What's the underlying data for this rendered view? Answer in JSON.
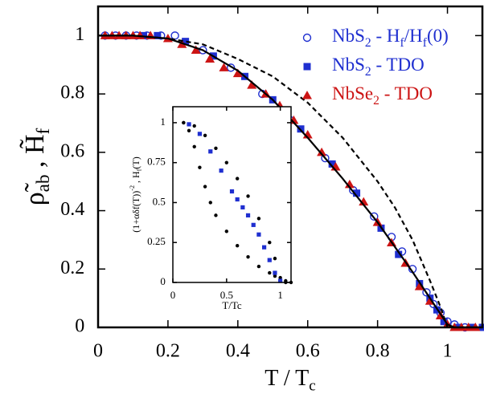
{
  "chart_data": [
    {
      "type": "scatter",
      "xlabel": [
        {
          "text": "T / T"
        },
        {
          "text": "c",
          "script": "sub"
        }
      ],
      "ylabel": [
        {
          "text": "ρ̃"
        },
        {
          "text": "ab",
          "script": "sub"
        },
        {
          "text": " ,  H̃"
        },
        {
          "text": "f",
          "script": "sub"
        }
      ],
      "xlim": [
        0,
        1.1
      ],
      "ylim": [
        0,
        1.1
      ],
      "xticks": [
        0,
        0.2,
        0.4,
        0.6,
        0.8,
        1
      ],
      "yticks": [
        0,
        0.2,
        0.4,
        0.6,
        0.8,
        1
      ],
      "legend": "upper right",
      "series": [
        {
          "name": [
            {
              "text": "NbS"
            },
            {
              "text": "2",
              "script": "sub"
            },
            {
              "text": " - H"
            },
            {
              "text": "f",
              "script": "sub"
            },
            {
              "text": "/H"
            },
            {
              "text": "f",
              "script": "sub"
            },
            {
              "text": "(0)"
            }
          ],
          "color": "#1f2fd0",
          "marker": "circle-open",
          "x": [
            0.02,
            0.05,
            0.08,
            0.11,
            0.14,
            0.18,
            0.22,
            0.3,
            0.38,
            0.47,
            0.55,
            0.65,
            0.73,
            0.79,
            0.84,
            0.87,
            0.9,
            0.94,
            0.96,
            0.98,
            1.0,
            1.02,
            1.05
          ],
          "values": [
            1,
            1,
            1,
            1,
            1,
            1,
            1,
            0.95,
            0.89,
            0.8,
            0.71,
            0.58,
            0.47,
            0.38,
            0.31,
            0.26,
            0.2,
            0.12,
            0.08,
            0.05,
            0.02,
            0.01,
            0
          ]
        },
        {
          "name": [
            {
              "text": "NbS"
            },
            {
              "text": "2",
              "script": "sub"
            },
            {
              "text": " - TDO"
            }
          ],
          "color": "#1f2fd0",
          "marker": "square",
          "x": [
            0.13,
            0.17,
            0.25,
            0.33,
            0.42,
            0.5,
            0.58,
            0.67,
            0.74,
            0.81,
            0.86,
            0.92,
            0.95,
            0.97,
            0.99,
            1.03,
            1.07,
            1.1
          ],
          "values": [
            1,
            1,
            0.98,
            0.93,
            0.86,
            0.78,
            0.68,
            0.56,
            0.46,
            0.34,
            0.25,
            0.15,
            0.1,
            0.06,
            0.02,
            0,
            0,
            0
          ]
        },
        {
          "name": [
            {
              "text": "NbSe"
            },
            {
              "text": "2",
              "script": "sub"
            },
            {
              "text": " - TDO"
            }
          ],
          "color": "#cc1414",
          "marker": "triangle",
          "x": [
            0.02,
            0.04,
            0.06,
            0.08,
            0.1,
            0.12,
            0.15,
            0.2,
            0.24,
            0.28,
            0.32,
            0.36,
            0.4,
            0.44,
            0.48,
            0.52,
            0.56,
            0.6,
            0.64,
            0.68,
            0.72,
            0.76,
            0.8,
            0.84,
            0.88,
            0.92,
            0.95,
            0.98,
            1.0,
            1.02,
            1.04,
            1.06,
            1.08
          ],
          "values": [
            1,
            1,
            1,
            1,
            1,
            1,
            1,
            0.99,
            0.97,
            0.95,
            0.92,
            0.89,
            0.87,
            0.83,
            0.8,
            0.76,
            0.71,
            0.66,
            0.6,
            0.55,
            0.49,
            0.43,
            0.36,
            0.29,
            0.22,
            0.14,
            0.09,
            0.04,
            0.01,
            0,
            0,
            0,
            0
          ]
        },
        {
          "color": "#000000",
          "marker": "line",
          "x": [
            0,
            0.1,
            0.2,
            0.3,
            0.4,
            0.5,
            0.6,
            0.7,
            0.8,
            0.9,
            0.95,
            1.0,
            1.02,
            1.1
          ],
          "values": [
            1,
            1,
            0.99,
            0.95,
            0.88,
            0.78,
            0.65,
            0.51,
            0.36,
            0.19,
            0.1,
            0.01,
            0,
            0
          ]
        },
        {
          "color": "#000000",
          "marker": "dashed-line",
          "x": [
            0,
            0.1,
            0.2,
            0.3,
            0.4,
            0.5,
            0.6,
            0.7,
            0.8,
            0.85,
            0.9,
            0.95,
            0.98,
            1.0
          ],
          "values": [
            1,
            1,
            0.99,
            0.97,
            0.92,
            0.86,
            0.77,
            0.65,
            0.5,
            0.41,
            0.3,
            0.16,
            0.07,
            0
          ]
        }
      ]
    },
    {
      "type": "scatter",
      "xlabel": [
        {
          "text": "T/Tc"
        }
      ],
      "ylabel": [
        {
          "text": "(1+αδf(T))"
        },
        {
          "text": "-2",
          "script": "sup"
        },
        {
          "text": " , H"
        },
        {
          "text": "f",
          "script": "sub"
        },
        {
          "text": "(T)"
        }
      ],
      "xlim": [
        0,
        1.1
      ],
      "ylim": [
        0,
        1.1
      ],
      "xticks": [
        0,
        0.5,
        1
      ],
      "yticks": [
        0,
        0.25,
        0.5,
        0.75,
        1
      ],
      "series": [
        {
          "color": "#000000",
          "marker": "dot",
          "x": [
            0.1,
            0.2,
            0.3,
            0.4,
            0.5,
            0.6,
            0.7,
            0.8,
            0.9,
            0.95,
            1.0,
            1.05,
            1.1
          ],
          "values": [
            1,
            0.98,
            0.92,
            0.84,
            0.75,
            0.65,
            0.54,
            0.4,
            0.25,
            0.15,
            0.03,
            0.01,
            0
          ]
        },
        {
          "color": "#000000",
          "marker": "dot",
          "x": [
            0.1,
            0.15,
            0.2,
            0.25,
            0.3,
            0.35,
            0.4,
            0.5,
            0.6,
            0.7,
            0.8,
            0.9,
            0.95,
            1.0,
            1.05
          ],
          "values": [
            1,
            0.95,
            0.85,
            0.72,
            0.6,
            0.5,
            0.42,
            0.32,
            0.23,
            0.16,
            0.1,
            0.06,
            0.04,
            0.01,
            0
          ]
        },
        {
          "color": "#1f2fd0",
          "marker": "small-square",
          "x": [
            0.15,
            0.25,
            0.35,
            0.45,
            0.55,
            0.6,
            0.65,
            0.7,
            0.75,
            0.8,
            0.85,
            0.9,
            0.95,
            1.0
          ],
          "values": [
            0.99,
            0.93,
            0.82,
            0.7,
            0.57,
            0.52,
            0.47,
            0.42,
            0.36,
            0.3,
            0.22,
            0.14,
            0.06,
            0.01
          ]
        }
      ]
    }
  ]
}
